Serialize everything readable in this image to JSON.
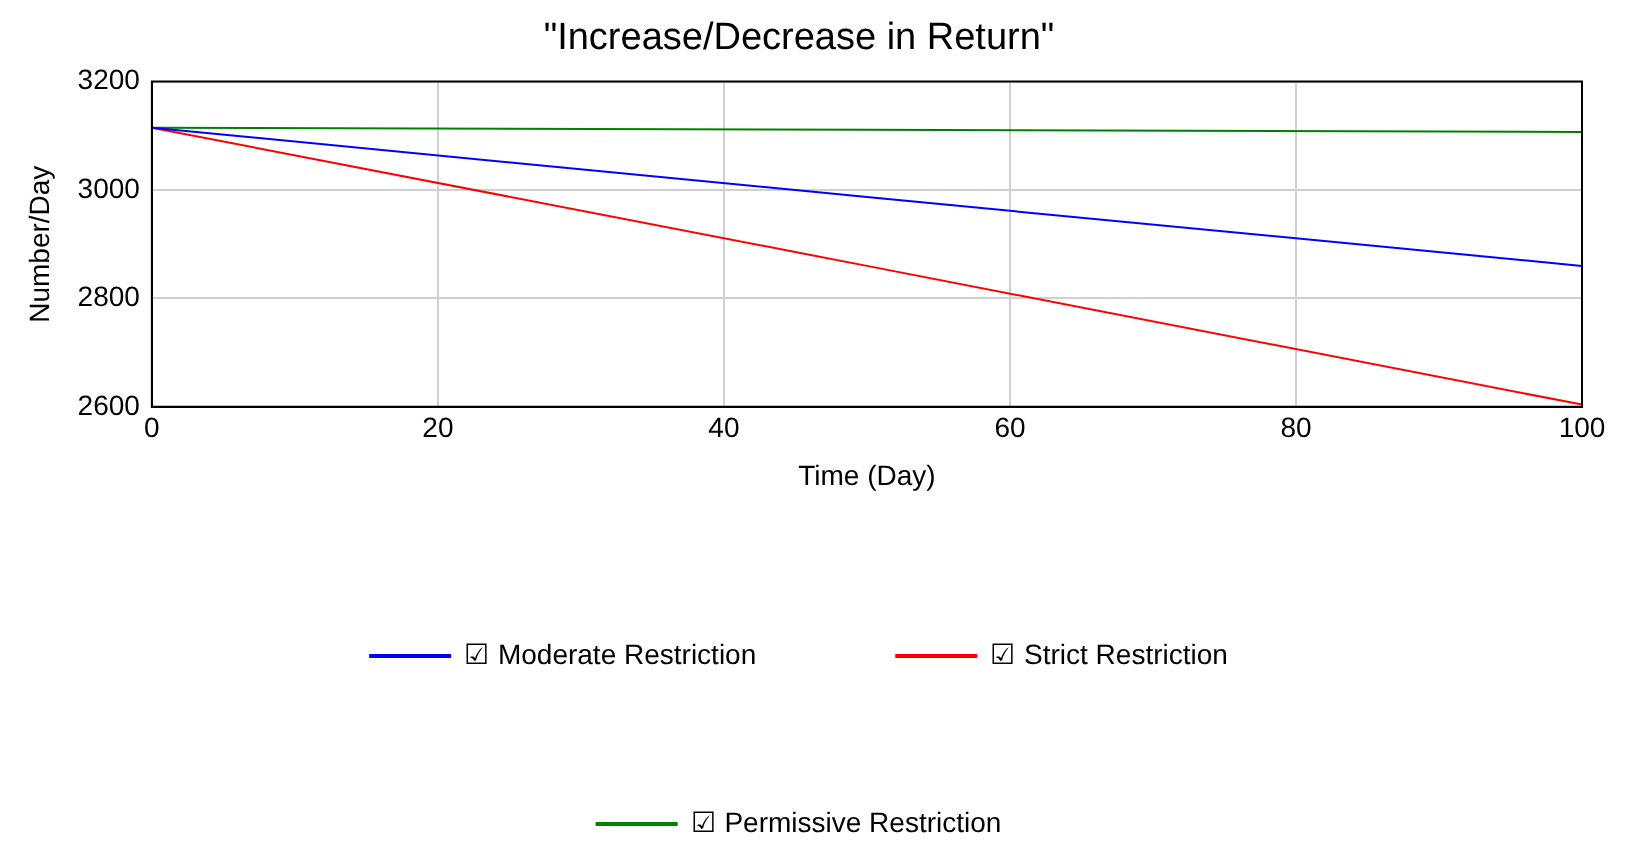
{
  "chart_data": {
    "type": "line",
    "title": "\"Increase/Decrease in Return\"",
    "xlabel": "Time (Day)",
    "ylabel": "Number/Day",
    "x": [
      0,
      50,
      100
    ],
    "series": [
      {
        "name": "☑ Moderate Restriction",
        "color": "#0000ff",
        "values": [
          3115,
          2987,
          2860
        ]
      },
      {
        "name": "☑ Strict Restriction",
        "color": "#ff0000",
        "values": [
          3115,
          2860,
          2604
        ]
      },
      {
        "name": "☑ Permissive Restriction",
        "color": "#008000",
        "values": [
          3115,
          3111,
          3107
        ]
      }
    ],
    "xlim": [
      0,
      100
    ],
    "xticks": [
      0,
      20,
      40,
      60,
      80,
      100
    ],
    "ylim": [
      2600,
      3200
    ],
    "yticks": [
      2600,
      2800,
      3000,
      3200
    ],
    "grid": true,
    "legend": "bottom",
    "marker": "none",
    "line_style": "solid"
  }
}
